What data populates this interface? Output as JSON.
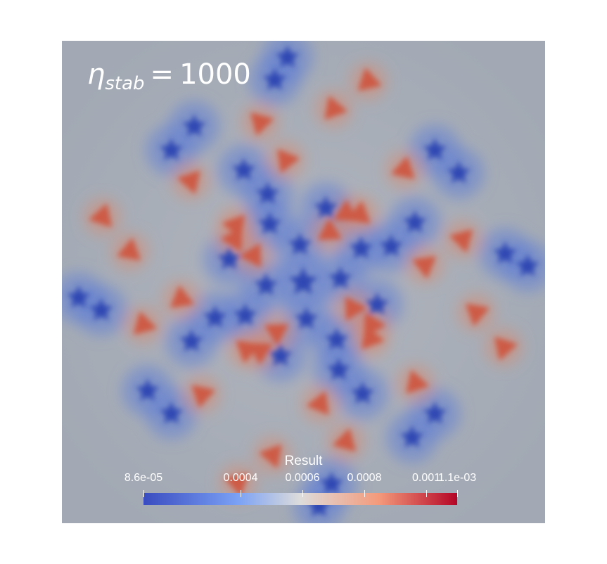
{
  "annotation": {
    "symbol": "η",
    "subscript": "stab",
    "operator": "=",
    "value": "1000"
  },
  "colorbar": {
    "title": "Result",
    "ticks": [
      "8.6e-05",
      "0.0004",
      "0.0006",
      "0.0008",
      "0.001",
      "1.1e-03"
    ],
    "colormap": "cool-to-warm",
    "range": [
      8.6e-05,
      0.0011
    ],
    "colors": {
      "low": "#3a4cc0",
      "mid": "#dddcdb",
      "high": "#b40426",
      "background": "#a4acb6"
    }
  }
}
